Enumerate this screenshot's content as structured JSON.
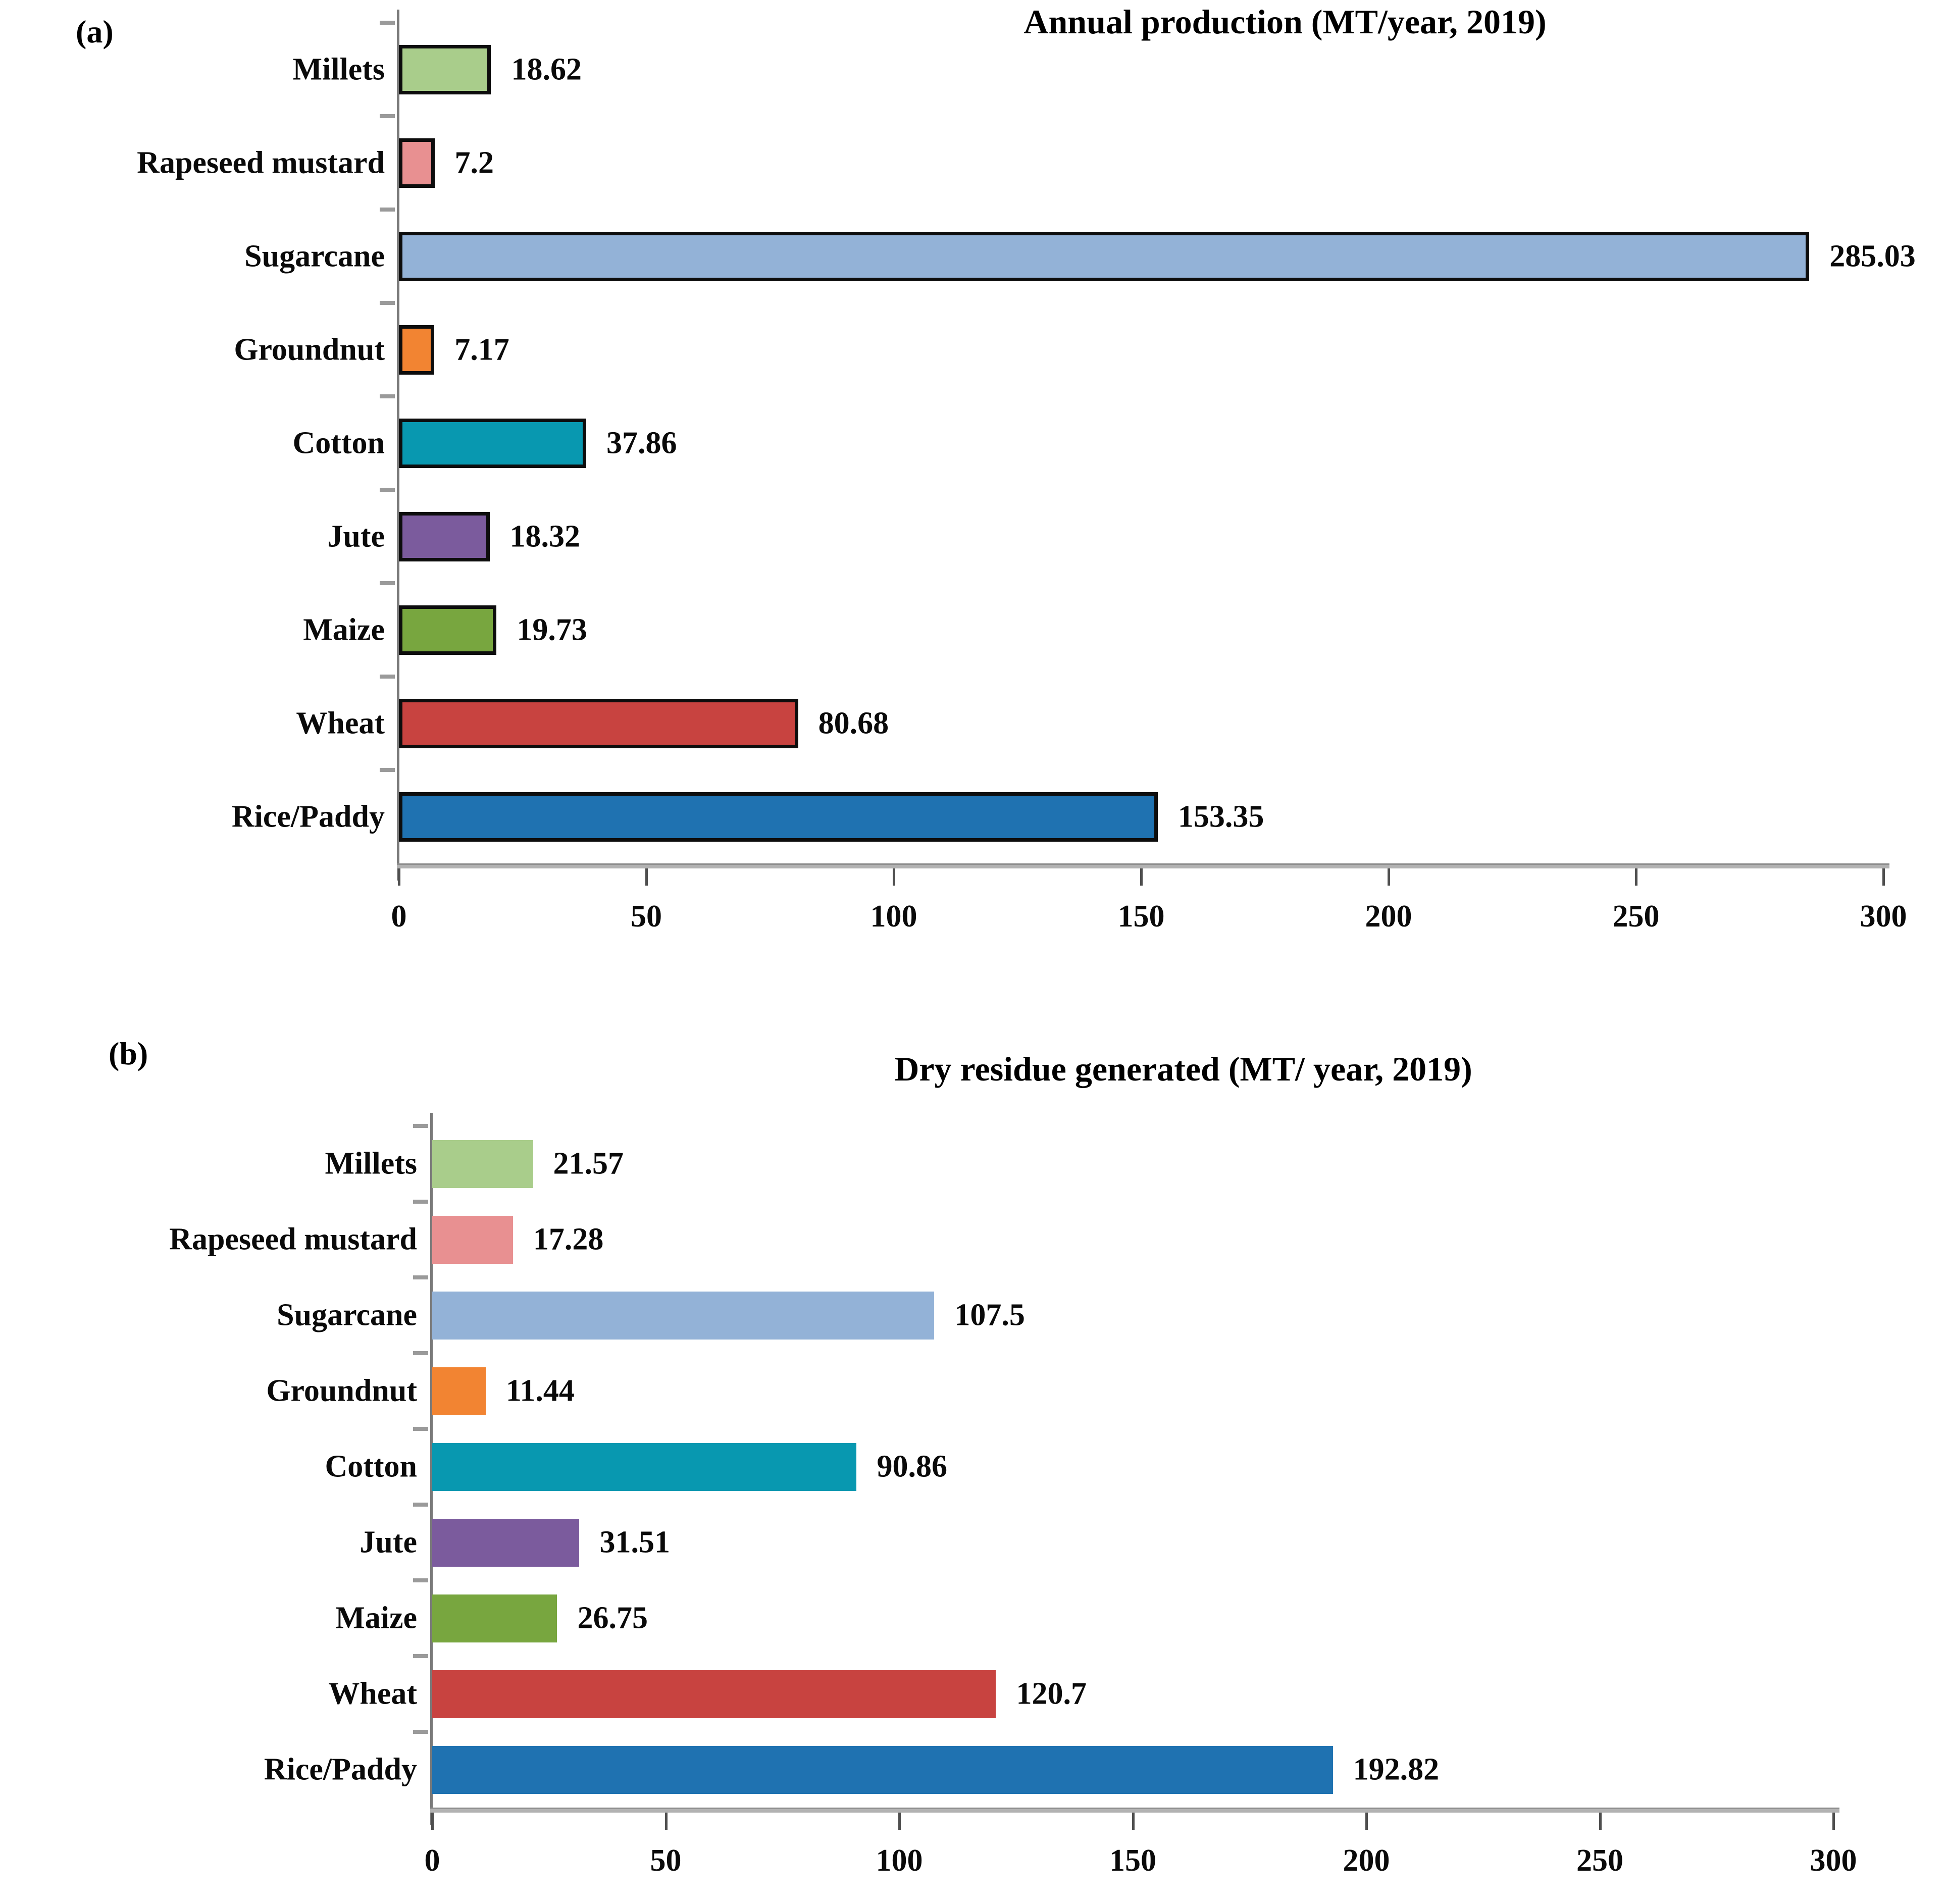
{
  "figure": {
    "background": "#ffffff",
    "text_color": "#111111"
  },
  "chart_data": [
    {
      "type": "bar",
      "orientation": "horizontal",
      "panel_label": "(a)",
      "title": "Annual production (MT/year, 2019)",
      "categories": [
        "Millets",
        "Rapeseed mustard",
        "Sugarcane",
        "Groundnut",
        "Cotton",
        "Jute",
        "Maize",
        "Wheat",
        "Rice/Paddy"
      ],
      "values": [
        18.62,
        7.2,
        285.03,
        7.17,
        37.86,
        18.32,
        19.73,
        80.68,
        153.35
      ],
      "value_labels": [
        "18.62",
        "7.2",
        "285.03",
        "7.17",
        "37.86",
        "18.32",
        "19.73",
        "80.68",
        "153.35"
      ],
      "colors": [
        "#a9cd8b",
        "#e89091",
        "#93b2d7",
        "#f28432",
        "#0898b0",
        "#7b5b9d",
        "#78a63f",
        "#c84340",
        "#1f72b1"
      ],
      "bar_outline": true,
      "outline_color": "#0d0d0d",
      "xlim": [
        0,
        300
      ],
      "xticks": [
        0,
        50,
        100,
        150,
        200,
        250,
        300
      ],
      "grid": false,
      "legend": false,
      "value_labels_position": "right-of-bar"
    },
    {
      "type": "bar",
      "orientation": "horizontal",
      "panel_label": "(b)",
      "title": "Dry residue generated (MT/ year, 2019)",
      "categories": [
        "Millets",
        "Rapeseed mustard",
        "Sugarcane",
        "Groundnut",
        "Cotton",
        "Jute",
        "Maize",
        "Wheat",
        "Rice/Paddy"
      ],
      "values": [
        21.57,
        17.28,
        107.5,
        11.44,
        90.86,
        31.51,
        26.75,
        120.7,
        192.82
      ],
      "value_labels": [
        "21.57",
        "17.28",
        "107.5",
        "11.44",
        "90.86",
        "31.51",
        "26.75",
        "120.7",
        "192.82"
      ],
      "colors": [
        "#a9cd8b",
        "#e89091",
        "#93b2d7",
        "#f28432",
        "#0898b0",
        "#7b5b9d",
        "#78a63f",
        "#c84340",
        "#1f72b1"
      ],
      "bar_outline": false,
      "outline_color": "#0d0d0d",
      "xlim": [
        0,
        300
      ],
      "xticks": [
        0,
        50,
        100,
        150,
        200,
        250,
        300
      ],
      "grid": false,
      "legend": false,
      "value_labels_position": "right-of-bar"
    }
  ]
}
